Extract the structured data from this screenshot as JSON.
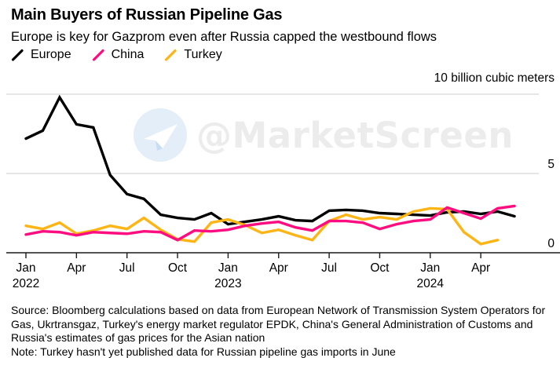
{
  "header": {
    "title": "Main Buyers of Russian Pipeline Gas",
    "subtitle": "Europe is key for Gazprom even after Russia capped the westbound flows"
  },
  "legend": [
    {
      "label": "Europe",
      "color": "#000000"
    },
    {
      "label": "China",
      "color": "#ff0d80"
    },
    {
      "label": "Turkey",
      "color": "#fdb515"
    }
  ],
  "watermark": {
    "text": "@MarketScreen",
    "icon": "telegram-paper-plane-icon"
  },
  "chart_data": {
    "type": "line",
    "title": "Main Buyers of Russian Pipeline Gas",
    "unit_label": "10 billion cubic meters",
    "ylim": [
      0,
      10
    ],
    "grid": "horizontal",
    "yticks": [
      {
        "value": 0,
        "label": "0"
      },
      {
        "value": 5,
        "label": "5"
      }
    ],
    "x": [
      "2022-01",
      "2022-02",
      "2022-03",
      "2022-04",
      "2022-05",
      "2022-06",
      "2022-07",
      "2022-08",
      "2022-09",
      "2022-10",
      "2022-11",
      "2022-12",
      "2023-01",
      "2023-02",
      "2023-03",
      "2023-04",
      "2023-05",
      "2023-06",
      "2023-07",
      "2023-08",
      "2023-09",
      "2023-10",
      "2023-11",
      "2023-12",
      "2024-01",
      "2024-02",
      "2024-03",
      "2024-04",
      "2024-05",
      "2024-06"
    ],
    "xticks": [
      {
        "index": 0,
        "label": "Jan",
        "year": "2022"
      },
      {
        "index": 3,
        "label": "Apr"
      },
      {
        "index": 6,
        "label": "Jul"
      },
      {
        "index": 9,
        "label": "Oct"
      },
      {
        "index": 12,
        "label": "Jan",
        "year": "2023"
      },
      {
        "index": 15,
        "label": "Apr"
      },
      {
        "index": 18,
        "label": "Jul"
      },
      {
        "index": 21,
        "label": "Oct"
      },
      {
        "index": 24,
        "label": "Jan",
        "year": "2024"
      },
      {
        "index": 27,
        "label": "Apr"
      }
    ],
    "series": [
      {
        "name": "Europe",
        "color": "#000000",
        "values": [
          7.2,
          7.7,
          9.8,
          8.1,
          7.9,
          4.9,
          3.7,
          3.4,
          2.4,
          2.2,
          2.1,
          2.5,
          1.8,
          1.95,
          2.1,
          2.3,
          2.05,
          2.0,
          2.65,
          2.7,
          2.65,
          2.5,
          2.45,
          2.4,
          2.35,
          2.55,
          2.6,
          2.45,
          2.6,
          2.3
        ]
      },
      {
        "name": "China",
        "color": "#ff0d80",
        "values": [
          1.15,
          1.35,
          1.3,
          1.1,
          1.3,
          1.25,
          1.2,
          1.35,
          1.3,
          0.8,
          1.4,
          1.35,
          1.45,
          1.7,
          1.85,
          1.95,
          1.6,
          1.4,
          2.0,
          2.0,
          1.9,
          1.5,
          1.8,
          2.0,
          2.1,
          2.85,
          2.5,
          2.15,
          2.8,
          2.95
        ]
      },
      {
        "name": "Turkey",
        "color": "#fdb515",
        "values": [
          1.7,
          1.5,
          1.9,
          1.2,
          1.4,
          1.7,
          1.5,
          2.2,
          1.45,
          0.85,
          0.7,
          1.9,
          2.1,
          1.75,
          1.25,
          1.45,
          1.1,
          0.8,
          2.0,
          2.4,
          2.1,
          2.25,
          2.1,
          2.6,
          2.8,
          2.75,
          1.3,
          0.55,
          0.8,
          null
        ]
      }
    ]
  },
  "footer": {
    "source": "Source: Bloomberg calculations based on data from European Network of Transmission System Operators for Gas, Ukrtransgaz, Turkey's energy market regulator EPDK, China's General Administration of Customs and Russia's estimates of gas prices for the Asian nation",
    "note": "Note: Turkey hasn't yet published data for Russian pipeline gas imports in June"
  }
}
